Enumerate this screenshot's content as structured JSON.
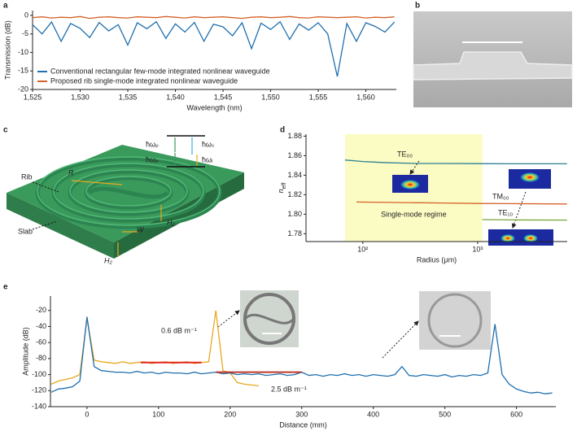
{
  "panel_labels": [
    "a",
    "b",
    "c",
    "d",
    "e"
  ],
  "diagram": {
    "labels": [
      "Rib",
      "Slab",
      "R",
      "W",
      "H₁",
      "H₂"
    ],
    "energy_levels": [
      "ħωₚ",
      "ħωₚ",
      "ħωₛ",
      "ħωᵢ"
    ]
  },
  "chart_data": [
    {
      "type": "line",
      "x": [
        1525,
        1526,
        1527,
        1528,
        1529,
        1530,
        1531,
        1532,
        1533,
        1534,
        1535,
        1536,
        1537,
        1538,
        1539,
        1540,
        1541,
        1542,
        1543,
        1544,
        1545,
        1546,
        1547,
        1548,
        1549,
        1550,
        1551,
        1552,
        1553,
        1554,
        1555,
        1556,
        1557,
        1558,
        1559,
        1560,
        1561,
        1562,
        1563
      ],
      "xlim": [
        1525,
        1563.2
      ],
      "xticks": [
        {
          "value": 1525,
          "label": "1,525"
        },
        {
          "value": 1530,
          "label": "1,530"
        },
        {
          "value": 1535,
          "label": "1,535"
        },
        {
          "value": 1540,
          "label": "1,540"
        },
        {
          "value": 1545,
          "label": "1,545"
        },
        {
          "value": 1550,
          "label": "1,550"
        },
        {
          "value": 1555,
          "label": "1,555"
        },
        {
          "value": 1560,
          "label": "1,560"
        }
      ],
      "ylim": [
        -20,
        1.3
      ],
      "yticks": [
        0,
        -5,
        -10,
        -15,
        -20
      ],
      "x_label": "Wavelength (nm)",
      "y_label": "Transmission (dB)",
      "legend": "lower left",
      "series": [
        {
          "name": "Conventional rectangular few-mode integrated nonlinear waveguide",
          "color": "#1f6fae",
          "values": [
            -2.5,
            -5,
            -1.8,
            -7,
            -2.2,
            -3.5,
            -6,
            -1.9,
            -4.2,
            -2.5,
            -8,
            -2,
            -3.6,
            -1.7,
            -6.2,
            -2.3,
            -4.5,
            -1.9,
            -7,
            -2.4,
            -3.1,
            -5.5,
            -2,
            -9,
            -2.1,
            -3.8,
            -1.7,
            -6.5,
            -2.3,
            -4,
            -2,
            -5,
            -16.5,
            -2.2,
            -7,
            -2,
            -3,
            -4.5,
            -1.8
          ]
        },
        {
          "name": "Proposed rib single-mode integrated nonlinear waveguide",
          "color": "#d4622a",
          "values": [
            -0.6,
            -0.4,
            -0.7,
            -0.5,
            -0.6,
            -0.3,
            -0.8,
            -0.5,
            -0.4,
            -0.6,
            -0.7,
            -0.4,
            -0.5,
            -0.6,
            -0.3,
            -0.5,
            -0.7,
            -0.4,
            -0.6,
            -0.5,
            -0.4,
            -0.6,
            -0.8,
            -0.5,
            -0.4,
            -0.6,
            -0.5,
            -0.3,
            -0.6,
            -0.7,
            -0.4,
            -0.5,
            -0.6,
            -0.5,
            -0.4,
            -0.7,
            -0.5,
            -0.6,
            -0.4
          ]
        }
      ]
    },
    {
      "type": "line",
      "log_x": true,
      "xlim": [
        32,
        6030
      ],
      "xticks": [
        {
          "value": 100,
          "label": "10²"
        },
        {
          "value": 1000,
          "label": "10³"
        }
      ],
      "ylim": [
        1.772,
        1.882
      ],
      "yticks": [
        1.78,
        {
          "value": 1.8,
          "label": "1.80"
        },
        1.82,
        1.84,
        1.86,
        1.88
      ],
      "x_label": "Radius (μm)",
      "y_label": {
        "text": "n",
        "sub": "eff"
      },
      "regions": [
        {
          "x": [
            70,
            1100
          ],
          "label": "Single-mode regime",
          "color": "#fbfbc4"
        }
      ],
      "series": [
        {
          "name": "TE₀₀",
          "color": "#2b7f93",
          "x": [
            70,
            80,
            100,
            150,
            200,
            300,
            500,
            1000,
            2000,
            5000,
            6000
          ],
          "values": [
            1.8555,
            1.855,
            1.854,
            1.853,
            1.8525,
            1.852,
            1.852,
            1.8518,
            1.8517,
            1.8517,
            1.8517
          ]
        },
        {
          "name": "TM₀₀",
          "color": "#d4622a",
          "x": [
            88,
            200,
            500,
            1000,
            2000,
            6000
          ],
          "values": [
            1.8125,
            1.812,
            1.8115,
            1.811,
            1.8108,
            1.8105
          ]
        },
        {
          "name": "TE₁₀",
          "color": "#7aa33a",
          "x": [
            1100,
            2000,
            6000
          ],
          "values": [
            1.7945,
            1.7942,
            1.794
          ]
        }
      ]
    },
    {
      "type": "line",
      "x": [
        -50,
        -40,
        -30,
        -20,
        -10,
        0,
        10,
        20,
        30,
        40,
        50,
        60,
        70,
        80,
        90,
        100,
        110,
        120,
        130,
        140,
        150,
        160,
        170,
        180,
        190,
        200,
        210,
        220,
        230,
        240,
        250,
        260,
        270,
        280,
        290,
        300,
        310,
        320,
        330,
        340,
        350,
        360,
        370,
        380,
        390,
        400,
        410,
        420,
        430,
        440,
        450,
        460,
        470,
        480,
        490,
        500,
        510,
        520,
        530,
        540,
        550,
        560,
        570,
        580,
        590,
        600,
        610,
        620,
        630,
        640,
        650
      ],
      "xlim": [
        -51,
        655
      ],
      "xticks": [
        0,
        100,
        200,
        300,
        400,
        500,
        600
      ],
      "ylim": [
        -140,
        -2
      ],
      "yticks": [
        -140,
        -120,
        -100,
        -80,
        -60,
        -40,
        -20
      ],
      "x_label": "Distance (mm)",
      "y_label": "Amplitude (dB)",
      "series": [
        {
          "color": "#e8a820",
          "values": [
            -112,
            -108,
            -106,
            -104,
            -100,
            -30,
            -82,
            -84,
            -85,
            -86,
            -84,
            -86,
            -85,
            -84,
            -86,
            -85,
            -84,
            -86,
            -85,
            -84,
            -86,
            -85,
            -84,
            -20,
            -95,
            -98,
            -110,
            -112,
            -113,
            -114,
            null,
            null,
            null,
            null,
            null,
            null,
            null,
            null,
            null,
            null,
            null,
            null,
            null,
            null,
            null,
            null,
            null,
            null,
            null,
            null,
            null,
            null,
            null,
            null,
            null,
            null,
            null,
            null,
            null,
            null,
            null,
            null,
            null,
            null,
            null,
            null,
            null,
            null,
            null,
            null,
            null
          ]
        },
        {
          "color": "#1f6fae",
          "values": [
            -122,
            -118,
            -117,
            -115,
            -108,
            -28,
            -90,
            -95,
            -96,
            -97,
            -97,
            -98,
            -96,
            -98,
            -97,
            -99,
            -97,
            -98,
            -98,
            -99,
            -97,
            -99,
            -98,
            -97,
            -99,
            -98,
            -100,
            -99,
            -100,
            -99,
            -101,
            -100,
            -99,
            -101,
            -100,
            -97,
            -101,
            -100,
            -102,
            -100,
            -101,
            -99,
            -101,
            -100,
            -102,
            -100,
            -101,
            -102,
            -100,
            -90,
            -101,
            -102,
            -100,
            -101,
            -102,
            -100,
            -103,
            -101,
            -102,
            -100,
            -101,
            -98,
            -37,
            -100,
            -112,
            -118,
            -121,
            -123,
            -122,
            -124,
            -123
          ]
        }
      ],
      "fits": [
        {
          "label": "0.6 dB m⁻¹",
          "color": "#e3261f",
          "x": [
            75,
            160
          ],
          "y": [
            -85,
            -85
          ]
        },
        {
          "label": "2.5 dB m⁻¹",
          "color": "#c0392b",
          "x": [
            180,
            300
          ],
          "y": [
            -97,
            -97
          ]
        }
      ]
    }
  ]
}
